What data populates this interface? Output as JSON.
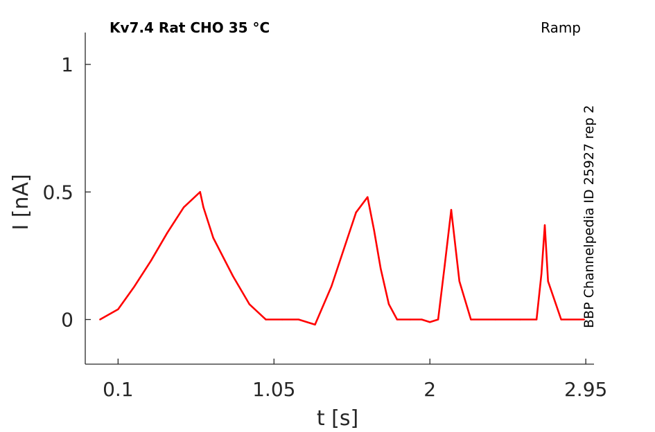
{
  "chart_data": {
    "type": "line",
    "title": "Kv7.4  Rat  CHO  35 °C",
    "subtitle": "Ramp",
    "side_label": "BBP Channelpedia ID 25927 rep 2",
    "xlabel": "t [s]",
    "ylabel": "I [nA]",
    "xlim": [
      -0.1,
      3.0
    ],
    "ylim": [
      -0.175,
      1.125
    ],
    "x_ticks": [
      0.1,
      1.05,
      2,
      2.95
    ],
    "x_tick_labels": [
      "0.1",
      "1.05",
      "2",
      "2.95"
    ],
    "y_ticks": [
      0,
      0.5,
      1
    ],
    "y_tick_labels": [
      "0",
      "0.5",
      "1"
    ],
    "grid": false,
    "legend": "none",
    "series_color": "#ff0000",
    "series": [
      {
        "x": [
          -0.01,
          0.1,
          0.2,
          0.3,
          0.4,
          0.5,
          0.6,
          0.62,
          0.68,
          0.8,
          0.9,
          1.0,
          1.1,
          1.2,
          1.3,
          1.4,
          1.55,
          1.62,
          1.66,
          1.7,
          1.75,
          1.8,
          1.88,
          1.95,
          2.0,
          2.05,
          2.09,
          2.13,
          2.18,
          2.25,
          2.4,
          2.55,
          2.65,
          2.68,
          2.7,
          2.72,
          2.8,
          2.94
        ],
        "y": [
          0.0,
          0.04,
          0.13,
          0.23,
          0.34,
          0.44,
          0.5,
          0.44,
          0.32,
          0.17,
          0.06,
          0.0,
          0.0,
          0.0,
          -0.02,
          0.13,
          0.42,
          0.48,
          0.35,
          0.2,
          0.06,
          0.0,
          0.0,
          0.0,
          -0.01,
          0.0,
          0.21,
          0.43,
          0.15,
          0.0,
          0.0,
          0.0,
          0.0,
          0.18,
          0.37,
          0.15,
          0.0,
          0.0
        ]
      }
    ]
  }
}
